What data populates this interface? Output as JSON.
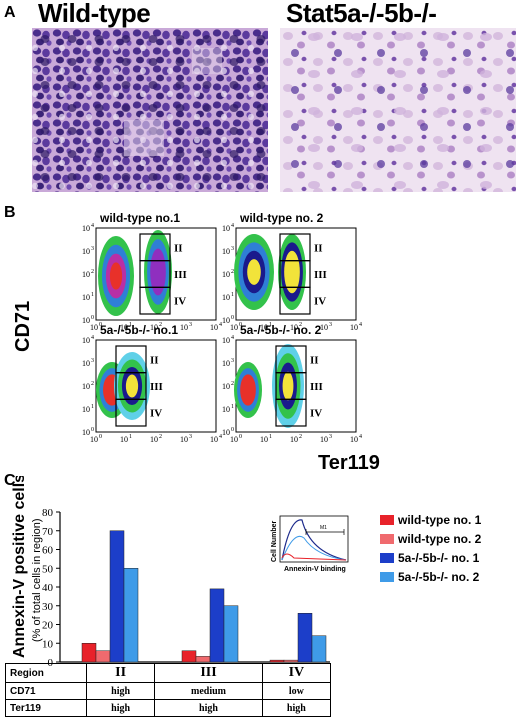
{
  "panels": {
    "a_label": "A",
    "b_label": "B",
    "c_label": "C"
  },
  "micrographs": {
    "left_title": "Wild-type",
    "right_title": "Stat5a-/-5b-/-"
  },
  "facs": {
    "plots": [
      {
        "title": "wild-type no.1",
        "gate_labels": [
          "II",
          "III",
          "IV"
        ]
      },
      {
        "title": "wild-type  no. 2",
        "gate_labels": [
          "II",
          "III",
          "IV"
        ]
      },
      {
        "title": "5a-/-5b-/- no.1",
        "gate_labels": [
          "II",
          "III",
          "IV"
        ]
      },
      {
        "title": "5a-/-5b-/- no. 2",
        "gate_labels": [
          "II",
          "III",
          "IV"
        ]
      }
    ],
    "y_axis_label": "CD71",
    "x_axis_label": "Ter119",
    "tick_labels": [
      "10",
      "10",
      "10",
      "10",
      "10"
    ],
    "tick_exponents": [
      "0",
      "1",
      "2",
      "3",
      "4"
    ]
  },
  "chart_data": {
    "type": "bar",
    "ylabel": "Annexin-V positive cells",
    "ylabel_sub": "(% of total cells in region)",
    "ylim": [
      0,
      80
    ],
    "yticks": [
      0,
      10,
      20,
      30,
      40,
      50,
      60,
      70,
      80
    ],
    "categories": [
      "II",
      "III",
      "IV"
    ],
    "series": [
      {
        "name": "wild-type no. 1",
        "color": "#e8222a",
        "values": [
          10,
          6,
          1
        ]
      },
      {
        "name": "wild-type no. 2",
        "color": "#f06a6e",
        "values": [
          6,
          3,
          1
        ]
      },
      {
        "name": "5a-/-5b-/- no. 1",
        "color": "#1c3ec9",
        "values": [
          70,
          39,
          26
        ]
      },
      {
        "name": "5a-/-5b-/- no. 2",
        "color": "#3f9be8",
        "values": [
          50,
          30,
          14
        ]
      }
    ],
    "region_table": {
      "headers": [
        "Region",
        "CD71",
        "Ter119"
      ],
      "rows": [
        {
          "region": "II",
          "cd71": "high",
          "ter119": "high"
        },
        {
          "region": "III",
          "cd71": "medium",
          "ter119": "high"
        },
        {
          "region": "IV",
          "cd71": "low",
          "ter119": "high"
        }
      ]
    },
    "inset": {
      "ylabel": "Cell Number",
      "xlabel": "Annexin-V binding",
      "gate_label": "M1"
    }
  }
}
